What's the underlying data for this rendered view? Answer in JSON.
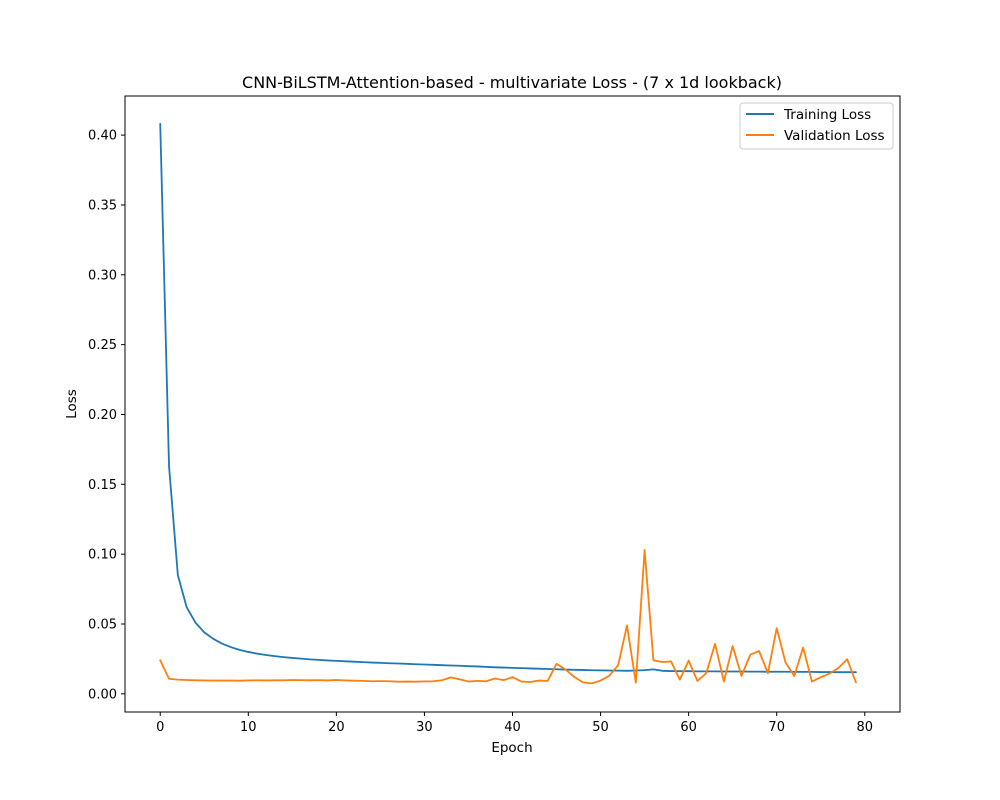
{
  "chart_data": {
    "type": "line",
    "title": "CNN-BiLSTM-Attention-based - multivariate Loss - (7 x 1d lookback)",
    "xlabel": "Epoch",
    "ylabel": "Loss",
    "xlim": [
      -4,
      84
    ],
    "ylim": [
      -0.013,
      0.428
    ],
    "x_ticks": [
      0,
      10,
      20,
      30,
      40,
      50,
      60,
      70,
      80
    ],
    "x_tick_labels": [
      "0",
      "10",
      "20",
      "30",
      "40",
      "50",
      "60",
      "70",
      "80"
    ],
    "y_ticks": [
      0.0,
      0.05,
      0.1,
      0.15,
      0.2,
      0.25,
      0.3,
      0.35,
      0.4
    ],
    "y_tick_labels": [
      "0.00",
      "0.05",
      "0.10",
      "0.15",
      "0.20",
      "0.25",
      "0.30",
      "0.35",
      "0.40"
    ],
    "grid": false,
    "legend_position": "top-right",
    "x": [
      0,
      1,
      2,
      3,
      4,
      5,
      6,
      7,
      8,
      9,
      10,
      11,
      12,
      13,
      14,
      15,
      16,
      17,
      18,
      19,
      20,
      21,
      22,
      23,
      24,
      25,
      26,
      27,
      28,
      29,
      30,
      31,
      32,
      33,
      34,
      35,
      36,
      37,
      38,
      39,
      40,
      41,
      42,
      43,
      44,
      45,
      46,
      47,
      48,
      49,
      50,
      51,
      52,
      53,
      54,
      55,
      56,
      57,
      58,
      59,
      60,
      61,
      62,
      63,
      64,
      65,
      66,
      67,
      68,
      69,
      70,
      71,
      72,
      73,
      74,
      75,
      76,
      77,
      78,
      79
    ],
    "series": [
      {
        "name": "Training Loss",
        "color": "#1f77b4",
        "values": [
          0.408,
          0.163,
          0.085,
          0.062,
          0.051,
          0.044,
          0.0395,
          0.036,
          0.0335,
          0.0315,
          0.03,
          0.0288,
          0.0278,
          0.027,
          0.0263,
          0.0257,
          0.0252,
          0.0247,
          0.0243,
          0.0239,
          0.0236,
          0.0233,
          0.023,
          0.0227,
          0.0224,
          0.0222,
          0.0219,
          0.0217,
          0.0215,
          0.0212,
          0.021,
          0.0208,
          0.0205,
          0.0203,
          0.0201,
          0.0198,
          0.0196,
          0.0193,
          0.019,
          0.0188,
          0.0186,
          0.0184,
          0.0182,
          0.018,
          0.0178,
          0.0176,
          0.0174,
          0.0172,
          0.0171,
          0.0169,
          0.0168,
          0.0167,
          0.0166,
          0.0165,
          0.0167,
          0.017,
          0.0175,
          0.0165,
          0.0163,
          0.0162,
          0.0162,
          0.0161,
          0.0161,
          0.0161,
          0.016,
          0.016,
          0.016,
          0.0159,
          0.0159,
          0.0158,
          0.0158,
          0.0158,
          0.0157,
          0.0157,
          0.0157,
          0.0156,
          0.0156,
          0.0155,
          0.0155,
          0.0155
        ]
      },
      {
        "name": "Validation Loss",
        "color": "#ff7f0e",
        "values": [
          0.024,
          0.0108,
          0.0102,
          0.0099,
          0.0097,
          0.0096,
          0.0095,
          0.0095,
          0.0095,
          0.0094,
          0.0096,
          0.0097,
          0.0096,
          0.0097,
          0.0097,
          0.0099,
          0.0098,
          0.0097,
          0.0098,
          0.0096,
          0.0099,
          0.0096,
          0.0094,
          0.0093,
          0.009,
          0.0091,
          0.009,
          0.0087,
          0.0088,
          0.0087,
          0.0089,
          0.009,
          0.0097,
          0.0118,
          0.0104,
          0.0088,
          0.0093,
          0.009,
          0.011,
          0.0098,
          0.012,
          0.0088,
          0.0085,
          0.0095,
          0.0093,
          0.0215,
          0.0175,
          0.0122,
          0.0082,
          0.0075,
          0.0095,
          0.013,
          0.0205,
          0.049,
          0.008,
          0.103,
          0.024,
          0.0228,
          0.0232,
          0.0102,
          0.0238,
          0.0092,
          0.0148,
          0.0358,
          0.0088,
          0.0342,
          0.0128,
          0.028,
          0.0306,
          0.0148,
          0.047,
          0.0225,
          0.0128,
          0.0332,
          0.0088,
          0.0118,
          0.0145,
          0.0185,
          0.0248,
          0.0082
        ]
      }
    ]
  }
}
